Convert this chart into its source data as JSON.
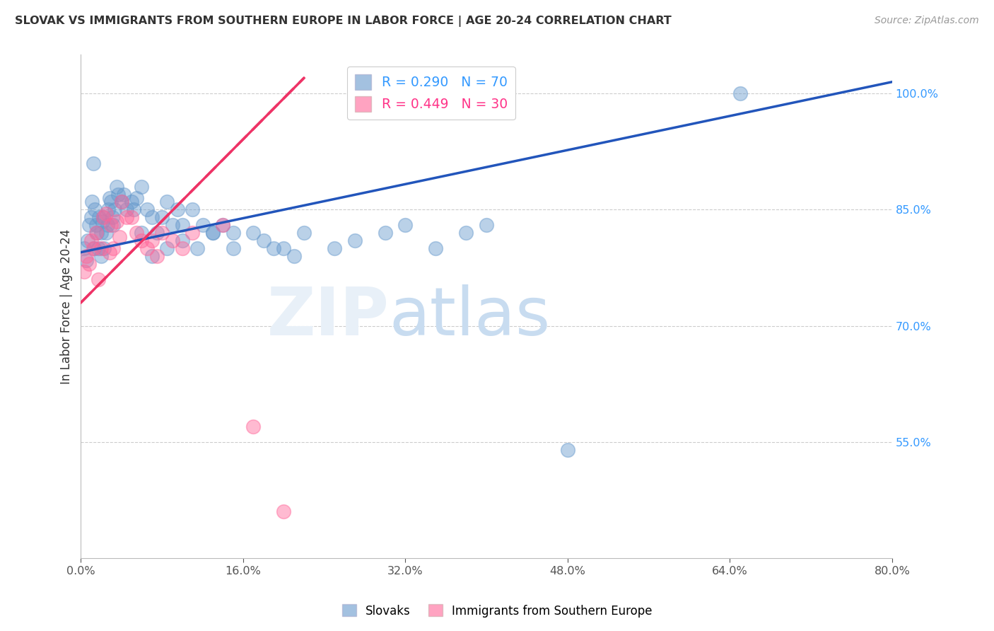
{
  "title": "SLOVAK VS IMMIGRANTS FROM SOUTHERN EUROPE IN LABOR FORCE | AGE 20-24 CORRELATION CHART",
  "source": "Source: ZipAtlas.com",
  "ylabel": "In Labor Force | Age 20-24",
  "xlim": [
    0.0,
    80.0
  ],
  "ylim": [
    40.0,
    105.0
  ],
  "y_ticks": [
    55.0,
    70.0,
    85.0,
    100.0
  ],
  "x_ticks": [
    0.0,
    16.0,
    32.0,
    48.0,
    64.0,
    80.0
  ],
  "blue_color": "#6699CC",
  "pink_color": "#FF6699",
  "blue_line_color": "#2255BB",
  "pink_line_color": "#EE3366",
  "R_blue": 0.29,
  "N_blue": 70,
  "R_pink": 0.449,
  "N_pink": 30,
  "legend_label_blue": "Slovaks",
  "legend_label_pink": "Immigrants from Southern Europe",
  "blue_scatter_x": [
    0.3,
    0.5,
    0.7,
    0.8,
    1.0,
    1.1,
    1.2,
    1.3,
    1.4,
    1.5,
    1.6,
    1.7,
    1.8,
    2.0,
    2.0,
    2.1,
    2.2,
    2.3,
    2.5,
    2.6,
    2.7,
    2.8,
    3.0,
    3.1,
    3.2,
    3.3,
    3.5,
    3.7,
    4.0,
    4.2,
    4.5,
    5.0,
    5.2,
    5.5,
    6.0,
    6.5,
    7.0,
    7.5,
    8.0,
    8.5,
    9.0,
    9.5,
    10.0,
    11.0,
    12.0,
    13.0,
    14.0,
    15.0,
    17.0,
    18.0,
    19.0,
    20.0,
    21.0,
    22.0,
    6.0,
    7.0,
    8.5,
    10.0,
    11.5,
    13.0,
    15.0,
    40.0,
    35.0,
    25.0,
    27.0,
    30.0,
    32.0,
    38.0,
    65.0,
    48.0
  ],
  "blue_scatter_y": [
    80.0,
    78.5,
    81.0,
    83.0,
    84.0,
    86.0,
    91.0,
    80.0,
    85.0,
    83.0,
    82.0,
    80.0,
    84.0,
    82.0,
    79.0,
    83.5,
    84.0,
    80.0,
    82.0,
    83.0,
    85.0,
    86.5,
    86.0,
    84.0,
    83.0,
    85.0,
    88.0,
    87.0,
    86.0,
    87.0,
    85.0,
    86.0,
    85.0,
    86.5,
    88.0,
    85.0,
    84.0,
    82.0,
    84.0,
    86.0,
    83.0,
    85.0,
    83.0,
    85.0,
    83.0,
    82.0,
    83.0,
    82.0,
    82.0,
    81.0,
    80.0,
    80.0,
    79.0,
    82.0,
    82.0,
    79.0,
    80.0,
    81.0,
    80.0,
    82.0,
    80.0,
    83.0,
    80.0,
    80.0,
    81.0,
    82.0,
    83.0,
    82.0,
    100.0,
    54.0
  ],
  "pink_scatter_x": [
    0.3,
    0.5,
    0.8,
    1.0,
    1.2,
    1.5,
    1.7,
    2.0,
    2.2,
    2.5,
    2.8,
    3.0,
    3.2,
    3.5,
    3.8,
    4.0,
    4.5,
    5.0,
    5.5,
    6.0,
    6.5,
    7.0,
    7.5,
    8.0,
    9.0,
    10.0,
    11.0,
    14.0,
    17.0,
    20.0
  ],
  "pink_scatter_y": [
    77.0,
    79.0,
    78.0,
    81.0,
    80.0,
    82.0,
    76.0,
    80.0,
    84.0,
    84.5,
    79.5,
    83.0,
    80.0,
    83.5,
    81.5,
    86.0,
    84.0,
    84.0,
    82.0,
    81.0,
    80.0,
    81.0,
    79.0,
    82.0,
    81.0,
    80.0,
    82.0,
    83.0,
    57.0,
    46.0
  ],
  "blue_trendline_x0": 0.0,
  "blue_trendline_y0": 79.5,
  "blue_trendline_x1": 80.0,
  "blue_trendline_y1": 101.5,
  "pink_trendline_x0": 0.0,
  "pink_trendline_y0": 73.0,
  "pink_trendline_x1": 22.0,
  "pink_trendline_y1": 102.0
}
